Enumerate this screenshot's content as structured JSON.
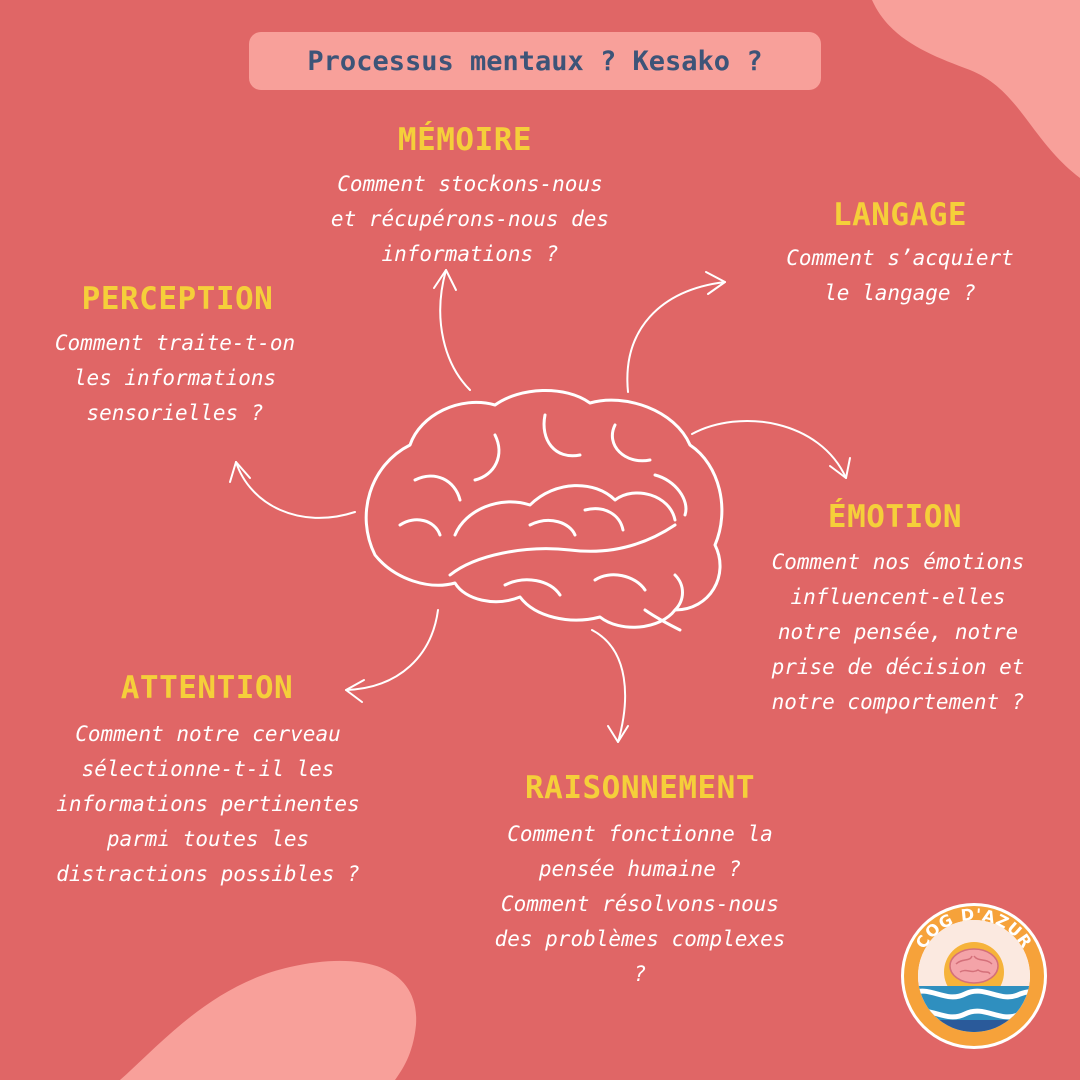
{
  "title": "Processus mentaux ? Kesako ?",
  "colors": {
    "background": "#e06666",
    "accent_blob": "#f8a09a",
    "heading": "#f5cf3a",
    "title_text": "#3d5478",
    "body_text": "#ffffff"
  },
  "topics": {
    "memoire": {
      "heading": "MÉMOIRE",
      "text": "Comment stockons-nous\net récupérons-nous des\ninformations ?"
    },
    "langage": {
      "heading": "LANGAGE",
      "text": "Comment s’acquiert\nle langage ?"
    },
    "perception": {
      "heading": "PERCEPTION",
      "text": "Comment traite-t-on\nles informations\nsensorielles ?"
    },
    "emotion": {
      "heading": "ÉMOTION",
      "text": "Comment nos émotions\ninfluencent-elles\nnotre pensée, notre\nprise de décision et\nnotre comportement ?"
    },
    "attention": {
      "heading": "ATTENTION",
      "text": "Comment notre cerveau\nsélectionne-t-il les\ninformations pertinentes\nparmi toutes les\ndistractions possibles ?"
    },
    "raisonnement": {
      "heading": "RAISONNEMENT",
      "text": "Comment fonctionne la\npensée humaine ?\nComment résolvons-nous\ndes problèmes complexes\n?"
    }
  },
  "logo": {
    "text": "COG D'AZUR",
    "icon": "brain-sun-waves-badge"
  },
  "center_icon": "brain-icon"
}
